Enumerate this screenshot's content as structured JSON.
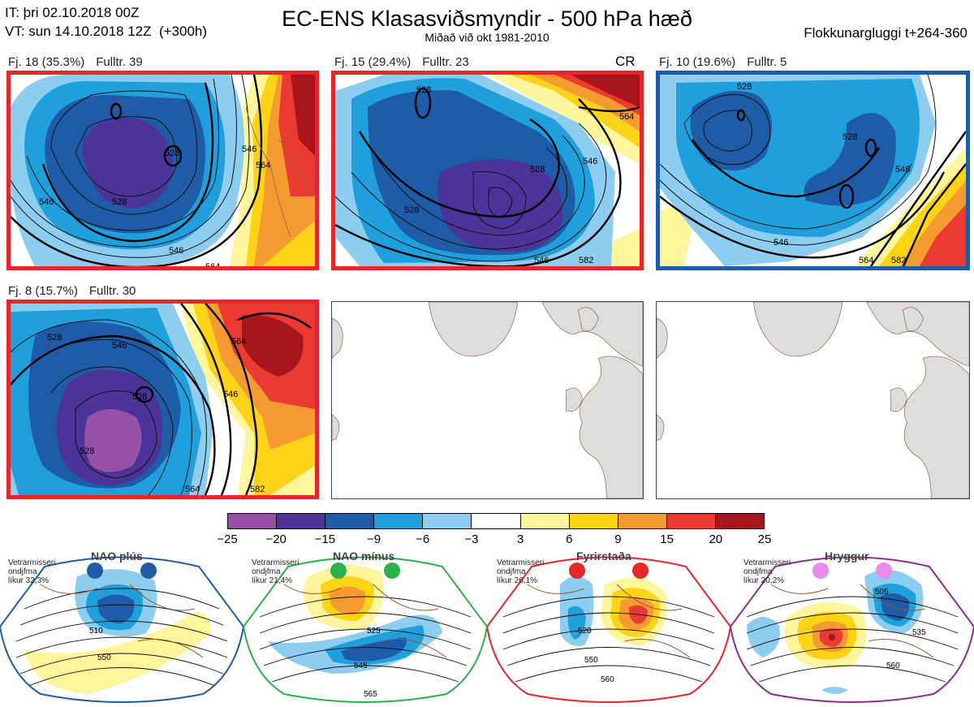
{
  "header": {
    "issue": "IT: þri 02.10.2018 00Z",
    "valid": "VT: sun 14.10.2018 12Z  (+300h)",
    "title": "EC-ENS Klasasviðsmyndir - 500 hPa hæð",
    "subtitle": "Miðað við okt 1981-2010",
    "window": "Flokkunargluggi t+264-360"
  },
  "panels": [
    {
      "label": "Fj. 18 (35.3%)",
      "members": "Fulltr. 39",
      "flag": "",
      "frame_color": "#e6262a",
      "contours": [
        "546",
        "528",
        "546",
        "564",
        "528",
        "546",
        "564"
      ]
    },
    {
      "label": "Fj. 15 (29.4%)",
      "members": "Fulltr. 23",
      "flag": "CR",
      "frame_color": "#e6262a",
      "contours": [
        "528",
        "528",
        "546",
        "564",
        "528",
        "546",
        "582"
      ]
    },
    {
      "label": "Fj. 10 (19.6%)",
      "members": "Fulltr. 5",
      "flag": "",
      "frame_color": "#1f5ca8",
      "contours": [
        "528",
        "528",
        "546",
        "546",
        "564",
        "582"
      ]
    },
    {
      "label": "Fj. 8 (15.7%)",
      "members": "Fulltr. 30",
      "flag": "",
      "frame_color": "#e6262a",
      "contours": [
        "528",
        "546",
        "528",
        "564",
        "528",
        "546",
        "564",
        "582"
      ]
    }
  ],
  "colorbar": {
    "colors": [
      "#9650a6",
      "#4b3399",
      "#1f5ca8",
      "#1f9fdc",
      "#8ccdf0",
      "#ffffff",
      "#fff59c",
      "#fdd318",
      "#f59b32",
      "#ea3a32",
      "#a8161c"
    ],
    "ticks": [
      "−25",
      "−20",
      "−15",
      "−9",
      "−6",
      "−3",
      "3",
      "6",
      "9",
      "15",
      "20",
      "25"
    ]
  },
  "regimes": [
    {
      "name": "NAO plús",
      "info": [
        "Vetrarmisseri",
        "ondjfma",
        "líkur 32,3%"
      ],
      "color": "#1f5ca8",
      "contours": [
        "510",
        "550"
      ]
    },
    {
      "name": "NAO mínus",
      "info": [
        "Vetrarmisseri",
        "ondjfma",
        "líkur 21,4%"
      ],
      "color": "#2bb04a",
      "contours": [
        "525",
        "545",
        "565"
      ]
    },
    {
      "name": "Fyrirstaða",
      "info": [
        "Vetrarmisseri",
        "ondjfma",
        "líkur 26,1%"
      ],
      "color": "#e6262a",
      "contours": [
        "520",
        "550",
        "560"
      ]
    },
    {
      "name": "Hryggur",
      "info": [
        "Vetrarmisseri",
        "ondjfma",
        "líkur 20,2%"
      ],
      "color": "#8e2b8e",
      "contours": [
        "505",
        "535",
        "560"
      ]
    }
  ]
}
